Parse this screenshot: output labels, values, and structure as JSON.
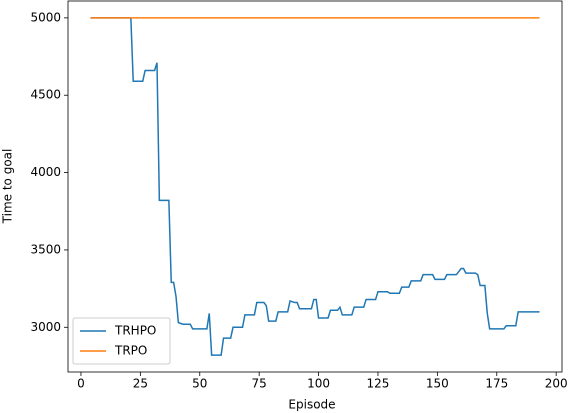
{
  "chart_data": {
    "type": "line",
    "x_label": "Episode",
    "y_label": "Time to goal",
    "xlim": [
      -5.45,
      202.45
    ],
    "ylim": [
      2711,
      5109
    ],
    "xticks": [
      0,
      25,
      50,
      75,
      100,
      125,
      150,
      175,
      200
    ],
    "yticks": [
      3000,
      3500,
      4000,
      4500,
      5000
    ],
    "legend": "lower left",
    "grid": false,
    "series": [
      {
        "name": "TRHPO",
        "color": "#1f77b4",
        "x": [
          4,
          21,
          22,
          26,
          27,
          31,
          32,
          33,
          37,
          38,
          39,
          40,
          41,
          43,
          46,
          47,
          53,
          54,
          55,
          59,
          60,
          63,
          64,
          68,
          69,
          73,
          74,
          77,
          78,
          79,
          82,
          83,
          87,
          88,
          90,
          91,
          92,
          97,
          98,
          99,
          100,
          104,
          105,
          108,
          109,
          110,
          114,
          115,
          119,
          120,
          124,
          125,
          129,
          130,
          134,
          135,
          138,
          139,
          143,
          144,
          148,
          149,
          153,
          154,
          158,
          160,
          161,
          162,
          166,
          167,
          168,
          170,
          171,
          172,
          178,
          179,
          183,
          184,
          193
        ],
        "values": [
          5000,
          5000,
          4590,
          4590,
          4660,
          4660,
          4710,
          3820,
          3820,
          3290,
          3290,
          3200,
          3030,
          3020,
          3020,
          2990,
          2990,
          3090,
          2820,
          2820,
          2930,
          2930,
          3000,
          3000,
          3080,
          3080,
          3160,
          3160,
          3140,
          3040,
          3040,
          3100,
          3100,
          3170,
          3160,
          3160,
          3120,
          3120,
          3180,
          3180,
          3060,
          3060,
          3110,
          3110,
          3130,
          3080,
          3080,
          3130,
          3130,
          3180,
          3180,
          3230,
          3230,
          3220,
          3220,
          3260,
          3260,
          3300,
          3300,
          3340,
          3340,
          3310,
          3310,
          3340,
          3340,
          3380,
          3380,
          3350,
          3350,
          3340,
          3270,
          3270,
          3090,
          2990,
          2990,
          3010,
          3010,
          3100,
          3100
        ]
      },
      {
        "name": "TRPO",
        "color": "#ff7f0e",
        "x": [
          4,
          193
        ],
        "values": [
          5000,
          5000
        ]
      }
    ]
  }
}
